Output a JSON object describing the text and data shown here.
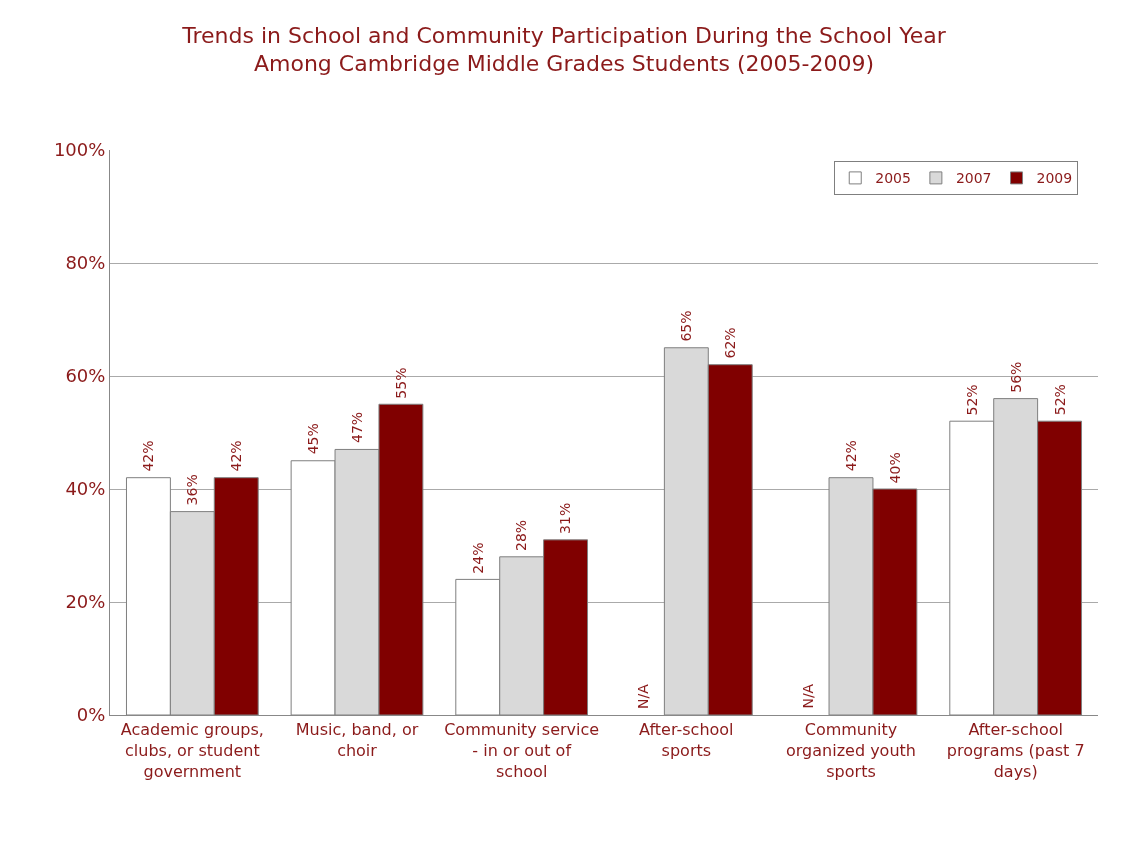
{
  "chart_data": {
    "type": "bar",
    "title": "Trends in School and Community Participation During the School Year\nAmong Cambridge Middle Grades Students (2005-2009)",
    "categories": [
      "Academic groups, clubs, or student government",
      "Music, band, or choir",
      "Community service - in or out of school",
      "After-school sports",
      "Community organized youth sports",
      "After-school programs (past 7 days)"
    ],
    "series": [
      {
        "name": "2005",
        "color": "#ffffff",
        "values": [
          42,
          45,
          24,
          null,
          null,
          52
        ],
        "value_labels": [
          "42%",
          "45%",
          "24%",
          "N/A",
          "N/A",
          "52%"
        ]
      },
      {
        "name": "2007",
        "color": "#d9d9d9",
        "values": [
          36,
          47,
          28,
          65,
          42,
          56
        ],
        "value_labels": [
          "36%",
          "47%",
          "28%",
          "65%",
          "42%",
          "56%"
        ]
      },
      {
        "name": "2009",
        "color": "#800000",
        "values": [
          42,
          55,
          31,
          62,
          40,
          52
        ],
        "value_labels": [
          "42%",
          "55%",
          "31%",
          "62%",
          "40%",
          "52%"
        ]
      }
    ],
    "ylim": [
      0,
      100
    ],
    "yticks": [
      {
        "value": 0,
        "label": "0%"
      },
      {
        "value": 20,
        "label": "20%"
      },
      {
        "value": 40,
        "label": "40%"
      },
      {
        "value": 60,
        "label": "60%"
      },
      {
        "value": 80,
        "label": "80%"
      },
      {
        "value": 100,
        "label": "100%"
      }
    ],
    "grid": "y",
    "legend": "top right"
  }
}
